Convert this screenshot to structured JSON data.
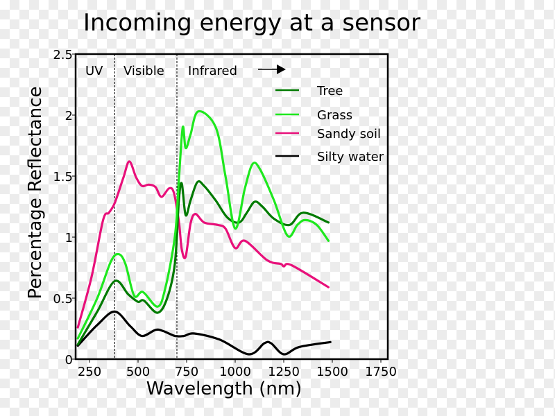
{
  "chart_data": {
    "type": "line",
    "title": "Incoming energy at a sensor",
    "xlabel": "Wavelength (nm)",
    "ylabel": "Percentage Reflectance",
    "xlim": [
      180,
      1785
    ],
    "ylim": [
      0,
      2.5
    ],
    "xticks": [
      250,
      500,
      750,
      1000,
      1250,
      1500,
      1750
    ],
    "xtick_labels": [
      "250",
      "500",
      "750",
      "1000",
      "1250",
      "1500",
      "1750"
    ],
    "yticks": [
      0,
      0.5,
      1,
      1.5,
      2,
      2.5
    ],
    "ytick_labels": [
      "0",
      "0.5",
      "1",
      "1.5",
      "2",
      "2.5"
    ],
    "grid": false,
    "legend_position": "top-right",
    "regions": [
      {
        "label": "UV",
        "x_start": 180,
        "x_end": 380
      },
      {
        "label": "Visible",
        "x_start": 380,
        "x_end": 700
      },
      {
        "label": "Infrared",
        "x_start": 700,
        "x_end": null
      }
    ],
    "region_boundaries": [
      380,
      700
    ],
    "annotations": [
      {
        "text": "arrow pointing right (infrared continues)",
        "type": "arrow"
      }
    ],
    "series": [
      {
        "name": "Tree",
        "color": "#007a00",
        "points": [
          [
            190,
            0.12
          ],
          [
            290,
            0.39
          ],
          [
            380,
            0.64
          ],
          [
            450,
            0.53
          ],
          [
            500,
            0.47
          ],
          [
            530,
            0.48
          ],
          [
            600,
            0.38
          ],
          [
            650,
            0.5
          ],
          [
            690,
            0.79
          ],
          [
            710,
            1.3
          ],
          [
            725,
            1.44
          ],
          [
            745,
            1.18
          ],
          [
            770,
            1.3
          ],
          [
            805,
            1.45
          ],
          [
            840,
            1.42
          ],
          [
            900,
            1.3
          ],
          [
            960,
            1.16
          ],
          [
            1020,
            1.12
          ],
          [
            1060,
            1.2
          ],
          [
            1100,
            1.29
          ],
          [
            1140,
            1.25
          ],
          [
            1200,
            1.15
          ],
          [
            1280,
            1.1
          ],
          [
            1350,
            1.2
          ],
          [
            1480,
            1.12
          ]
        ]
      },
      {
        "name": "Grass",
        "color": "#1ee81e",
        "points": [
          [
            190,
            0.17
          ],
          [
            290,
            0.5
          ],
          [
            360,
            0.8
          ],
          [
            400,
            0.86
          ],
          [
            435,
            0.78
          ],
          [
            480,
            0.52
          ],
          [
            525,
            0.55
          ],
          [
            600,
            0.43
          ],
          [
            640,
            0.58
          ],
          [
            690,
            1.01
          ],
          [
            710,
            1.47
          ],
          [
            730,
            1.9
          ],
          [
            745,
            1.73
          ],
          [
            770,
            1.84
          ],
          [
            810,
            2.03
          ],
          [
            900,
            1.9
          ],
          [
            950,
            1.5
          ],
          [
            1000,
            1.07
          ],
          [
            1050,
            1.4
          ],
          [
            1090,
            1.6
          ],
          [
            1130,
            1.55
          ],
          [
            1200,
            1.3
          ],
          [
            1270,
            1.01
          ],
          [
            1320,
            1.1
          ],
          [
            1360,
            1.14
          ],
          [
            1420,
            1.1
          ],
          [
            1480,
            0.97
          ]
        ]
      },
      {
        "name": "Sandy soil",
        "color": "#e8107a",
        "points": [
          [
            190,
            0.26
          ],
          [
            260,
            0.67
          ],
          [
            320,
            1.14
          ],
          [
            350,
            1.2
          ],
          [
            380,
            1.28
          ],
          [
            425,
            1.49
          ],
          [
            455,
            1.62
          ],
          [
            490,
            1.49
          ],
          [
            520,
            1.42
          ],
          [
            555,
            1.43
          ],
          [
            590,
            1.41
          ],
          [
            620,
            1.33
          ],
          [
            660,
            1.4
          ],
          [
            685,
            1.36
          ],
          [
            710,
            1.13
          ],
          [
            725,
            0.9
          ],
          [
            745,
            0.84
          ],
          [
            770,
            1.11
          ],
          [
            795,
            1.19
          ],
          [
            840,
            1.12
          ],
          [
            910,
            1.1
          ],
          [
            950,
            1.07
          ],
          [
            1000,
            0.91
          ],
          [
            1050,
            0.97
          ],
          [
            1165,
            0.81
          ],
          [
            1235,
            0.78
          ],
          [
            1250,
            0.76
          ],
          [
            1290,
            0.77
          ],
          [
            1480,
            0.59
          ]
        ]
      },
      {
        "name": "Silty water",
        "color": "#000000",
        "points": [
          [
            190,
            0.11
          ],
          [
            290,
            0.28
          ],
          [
            380,
            0.39
          ],
          [
            460,
            0.27
          ],
          [
            520,
            0.19
          ],
          [
            590,
            0.24
          ],
          [
            630,
            0.23
          ],
          [
            690,
            0.19
          ],
          [
            735,
            0.19
          ],
          [
            790,
            0.21
          ],
          [
            920,
            0.16
          ],
          [
            1070,
            0.04
          ],
          [
            1150,
            0.13
          ],
          [
            1185,
            0.13
          ],
          [
            1250,
            0.04
          ],
          [
            1330,
            0.1
          ],
          [
            1490,
            0.14
          ]
        ]
      }
    ]
  }
}
